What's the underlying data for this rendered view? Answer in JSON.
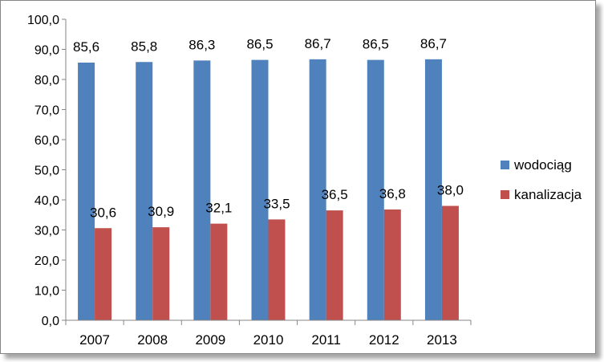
{
  "chart_data": {
    "type": "bar",
    "categories": [
      "2007",
      "2008",
      "2009",
      "2010",
      "2011",
      "2012",
      "2013"
    ],
    "series": [
      {
        "name": "wodociąg",
        "values": [
          85.6,
          85.8,
          86.3,
          86.5,
          86.7,
          86.5,
          86.7
        ],
        "labels": [
          "85,6",
          "85,8",
          "86,3",
          "86,5",
          "86,7",
          "86,5",
          "86,7"
        ],
        "color": "#4F81BD"
      },
      {
        "name": "kanalizacja",
        "values": [
          30.6,
          30.9,
          32.1,
          33.5,
          36.5,
          36.8,
          38.0
        ],
        "labels": [
          "30,6",
          "30,9",
          "32,1",
          "33,5",
          "36,5",
          "36,8",
          "38,0"
        ],
        "color": "#C0504D"
      }
    ],
    "y_ticks": [
      "0,0",
      "10,0",
      "20,0",
      "30,0",
      "40,0",
      "50,0",
      "60,0",
      "70,0",
      "80,0",
      "90,0",
      "100,0"
    ],
    "ylim": [
      0,
      100
    ],
    "y_step": 10,
    "grid": false,
    "legend_position": "right"
  }
}
